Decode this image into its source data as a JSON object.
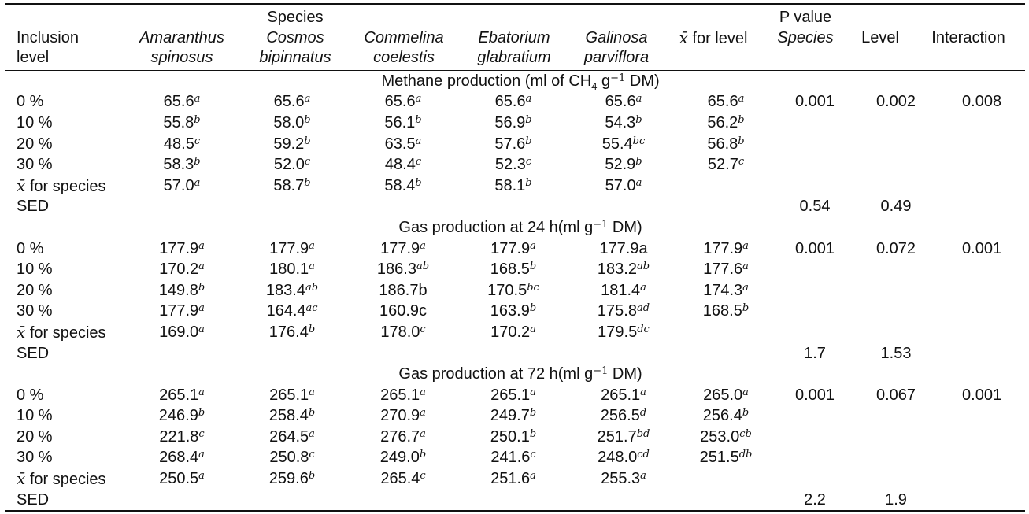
{
  "header": {
    "species_group_label": "Species",
    "inclusion_level": [
      "Inclusion",
      "level"
    ],
    "species": [
      [
        "Amaranthus",
        "spinosus"
      ],
      [
        "Cosmos",
        "bipinnatus"
      ],
      [
        "Commelina",
        "coelestis"
      ],
      [
        "Ebatorium",
        "glabratium"
      ],
      [
        "Galinosa",
        "parviflora"
      ]
    ],
    "xbar_symbol": "x̄",
    "xbar_level_suffix": " for level",
    "p_value_label": "P value",
    "p_species": "Species",
    "p_level": "Level",
    "p_interaction": "Interaction"
  },
  "sections": [
    {
      "title_pre": "Methane production (ml of CH",
      "title_sub": "4",
      "title_mid": " g",
      "title_sup": "−1",
      "title_post": " DM)",
      "rows": [
        {
          "label": "0 %",
          "cells": [
            [
              "65.6",
              "a"
            ],
            [
              "65.6",
              "a"
            ],
            [
              "65.6",
              "a"
            ],
            [
              "65.6",
              "a"
            ],
            [
              "65.6",
              "a"
            ],
            [
              "65.6",
              "a"
            ]
          ],
          "p": [
            "0.001",
            "0.002",
            "0.008"
          ]
        },
        {
          "label": "10 %",
          "cells": [
            [
              "55.8",
              "b"
            ],
            [
              "58.0",
              "b"
            ],
            [
              "56.1",
              "b"
            ],
            [
              "56.9",
              "b"
            ],
            [
              "54.3",
              "b"
            ],
            [
              "56.2",
              "b"
            ]
          ],
          "p": [
            "",
            "",
            ""
          ]
        },
        {
          "label": "20 %",
          "cells": [
            [
              "48.5",
              "c"
            ],
            [
              "59.2",
              "b"
            ],
            [
              "63.5",
              "a"
            ],
            [
              "57.6",
              "b"
            ],
            [
              "55.4",
              "bc"
            ],
            [
              "56.8",
              "b"
            ]
          ],
          "p": [
            "",
            "",
            ""
          ]
        },
        {
          "label": "30 %",
          "cells": [
            [
              "58.3",
              "b"
            ],
            [
              "52.0",
              "c"
            ],
            [
              "48.4",
              "c"
            ],
            [
              "52.3",
              "c"
            ],
            [
              "52.9",
              "b"
            ],
            [
              "52.7",
              "c"
            ]
          ],
          "p": [
            "",
            "",
            ""
          ]
        },
        {
          "label_xbar": "x̄",
          "label": " for species",
          "cells": [
            [
              "57.0",
              "a"
            ],
            [
              "58.7",
              "b"
            ],
            [
              "58.4",
              "b"
            ],
            [
              "58.1",
              "b"
            ],
            [
              "57.0",
              "a"
            ],
            [
              "",
              ""
            ]
          ],
          "p": [
            "",
            "",
            ""
          ]
        },
        {
          "label": "SED",
          "cells": [
            [
              "",
              ""
            ],
            [
              "",
              ""
            ],
            [
              "",
              ""
            ],
            [
              "",
              ""
            ],
            [
              "",
              ""
            ],
            [
              "",
              ""
            ]
          ],
          "p": [
            "0.54",
            "0.49",
            ""
          ]
        }
      ]
    },
    {
      "title_pre": "Gas production at 24 h(ml g",
      "title_sub": "",
      "title_mid": "",
      "title_sup": "−1",
      "title_post": " DM)",
      "rows": [
        {
          "label": "0 %",
          "cells": [
            [
              "177.9",
              "a"
            ],
            [
              "177.9",
              "a"
            ],
            [
              "177.9",
              "a"
            ],
            [
              "177.9",
              "a"
            ],
            [
              "177.9a",
              ""
            ],
            [
              "177.9",
              "a"
            ]
          ],
          "p": [
            "0.001",
            "0.072",
            "0.001"
          ]
        },
        {
          "label": "10 %",
          "cells": [
            [
              "170.2",
              "a"
            ],
            [
              "180.1",
              "a"
            ],
            [
              "186.3",
              "ab"
            ],
            [
              "168.5",
              "b"
            ],
            [
              "183.2",
              "ab"
            ],
            [
              "177.6",
              "a"
            ]
          ],
          "p": [
            "",
            "",
            ""
          ]
        },
        {
          "label": "20 %",
          "cells": [
            [
              "149.8",
              "b"
            ],
            [
              "183.4",
              "ab"
            ],
            [
              "186.7b",
              ""
            ],
            [
              "170.5",
              "bc"
            ],
            [
              "181.4",
              "a"
            ],
            [
              "174.3",
              "a"
            ]
          ],
          "p": [
            "",
            "",
            ""
          ]
        },
        {
          "label": "30 %",
          "cells": [
            [
              "177.9",
              "a"
            ],
            [
              "164.4",
              "ac"
            ],
            [
              "160.9c",
              ""
            ],
            [
              "163.9",
              "b"
            ],
            [
              "175.8",
              "ad"
            ],
            [
              "168.5",
              "b"
            ]
          ],
          "p": [
            "",
            "",
            ""
          ]
        },
        {
          "label_xbar": "x̄",
          "label": " for species",
          "cells": [
            [
              "169.0",
              "a"
            ],
            [
              "176.4",
              "b"
            ],
            [
              "178.0",
              "c"
            ],
            [
              "170.2",
              "a"
            ],
            [
              "179.5",
              "dc"
            ],
            [
              "",
              ""
            ]
          ],
          "p": [
            "",
            "",
            ""
          ]
        },
        {
          "label": "SED",
          "cells": [
            [
              "",
              ""
            ],
            [
              "",
              ""
            ],
            [
              "",
              ""
            ],
            [
              "",
              ""
            ],
            [
              "",
              ""
            ],
            [
              "",
              ""
            ]
          ],
          "p": [
            "1.7",
            "1.53",
            ""
          ]
        }
      ]
    },
    {
      "title_pre": "Gas production at 72 h(ml g",
      "title_sub": "",
      "title_mid": "",
      "title_sup": "−1",
      "title_post": " DM)",
      "rows": [
        {
          "label": "0 %",
          "cells": [
            [
              "265.1",
              "a"
            ],
            [
              "265.1",
              "a"
            ],
            [
              "265.1",
              "a"
            ],
            [
              "265.1",
              "a"
            ],
            [
              "265.1",
              "a"
            ],
            [
              "265.0",
              "a"
            ]
          ],
          "p": [
            "0.001",
            "0.067",
            "0.001"
          ]
        },
        {
          "label": "10 %",
          "cells": [
            [
              "246.9",
              "b"
            ],
            [
              "258.4",
              "b"
            ],
            [
              "270.9",
              "a"
            ],
            [
              "249.7",
              "b"
            ],
            [
              "256.5",
              "d"
            ],
            [
              "256.4",
              "b"
            ]
          ],
          "p": [
            "",
            "",
            ""
          ]
        },
        {
          "label": "20 %",
          "cells": [
            [
              "221.8",
              "c"
            ],
            [
              "264.5",
              "a"
            ],
            [
              "276.7",
              "a"
            ],
            [
              "250.1",
              "b"
            ],
            [
              "251.7",
              "bd"
            ],
            [
              "253.0",
              "cb"
            ]
          ],
          "p": [
            "",
            "",
            ""
          ]
        },
        {
          "label": "30 %",
          "cells": [
            [
              "268.4",
              "a"
            ],
            [
              "250.8",
              "c"
            ],
            [
              "249.0",
              "b"
            ],
            [
              "241.6",
              "c"
            ],
            [
              "248.0",
              "cd"
            ],
            [
              "251.5",
              "db"
            ]
          ],
          "p": [
            "",
            "",
            ""
          ]
        },
        {
          "label_xbar": "x̄",
          "label": " for species",
          "cells": [
            [
              "250.5",
              "a"
            ],
            [
              "259.6",
              "b"
            ],
            [
              "265.4",
              "c"
            ],
            [
              "251.6",
              "a"
            ],
            [
              "255.3",
              "a"
            ],
            [
              "",
              ""
            ]
          ],
          "p": [
            "",
            "",
            ""
          ]
        },
        {
          "label": "SED",
          "cells": [
            [
              "",
              ""
            ],
            [
              "",
              ""
            ],
            [
              "",
              ""
            ],
            [
              "",
              ""
            ],
            [
              "",
              ""
            ],
            [
              "",
              ""
            ]
          ],
          "p": [
            "2.2",
            "1.9",
            ""
          ]
        }
      ]
    }
  ]
}
